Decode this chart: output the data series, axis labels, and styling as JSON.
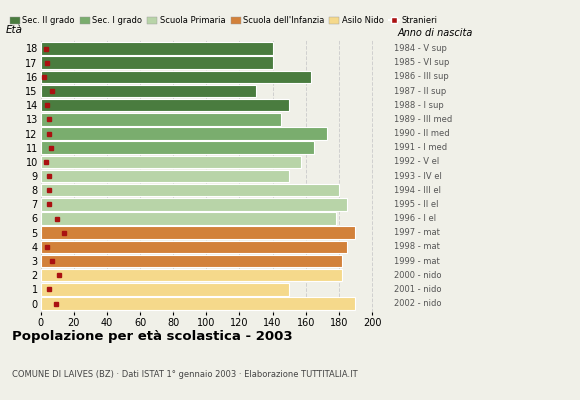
{
  "ages": [
    18,
    17,
    16,
    15,
    14,
    13,
    12,
    11,
    10,
    9,
    8,
    7,
    6,
    5,
    4,
    3,
    2,
    1,
    0
  ],
  "bar_values": [
    140,
    140,
    163,
    130,
    150,
    145,
    173,
    165,
    157,
    150,
    180,
    185,
    178,
    190,
    185,
    182,
    182,
    150,
    190
  ],
  "stranieri": [
    3,
    4,
    2,
    7,
    4,
    5,
    5,
    6,
    3,
    5,
    5,
    5,
    10,
    14,
    4,
    7,
    11,
    5,
    9
  ],
  "bar_colors": [
    "#4a7c3f",
    "#4a7c3f",
    "#4a7c3f",
    "#4a7c3f",
    "#4a7c3f",
    "#7aad6e",
    "#7aad6e",
    "#7aad6e",
    "#b8d4a8",
    "#b8d4a8",
    "#b8d4a8",
    "#b8d4a8",
    "#b8d4a8",
    "#d2813a",
    "#d2813a",
    "#d2813a",
    "#f5d98b",
    "#f5d98b",
    "#f5d98b"
  ],
  "anno_labels": [
    "1984 - V sup",
    "1985 - VI sup",
    "1986 - III sup",
    "1987 - II sup",
    "1988 - I sup",
    "1989 - III med",
    "1990 - II med",
    "1991 - I med",
    "1992 - V el",
    "1993 - IV el",
    "1994 - III el",
    "1995 - II el",
    "1996 - I el",
    "1997 - mat",
    "1998 - mat",
    "1999 - mat",
    "2000 - nido",
    "2001 - nido",
    "2002 - nido"
  ],
  "legend_labels": [
    "Sec. II grado",
    "Sec. I grado",
    "Scuola Primaria",
    "Scuola dell'Infanzia",
    "Asilo Nido",
    "Stranieri"
  ],
  "legend_colors": [
    "#4a7c3f",
    "#7aad6e",
    "#b8d4a8",
    "#d2813a",
    "#f5d98b",
    "#aa1111"
  ],
  "title": "Popolazione per età scolastica - 2003",
  "subtitle": "COMUNE DI LAIVES (BZ) · Dati ISTAT 1° gennaio 2003 · Elaborazione TUTTITALIA.IT",
  "xlabel_eta": "Età",
  "xlabel_anno": "Anno di nascita",
  "xlim": [
    0,
    210
  ],
  "xticks": [
    0,
    20,
    40,
    60,
    80,
    100,
    120,
    140,
    160,
    180,
    200
  ],
  "background_color": "#f0f0e8",
  "bar_height": 0.88
}
